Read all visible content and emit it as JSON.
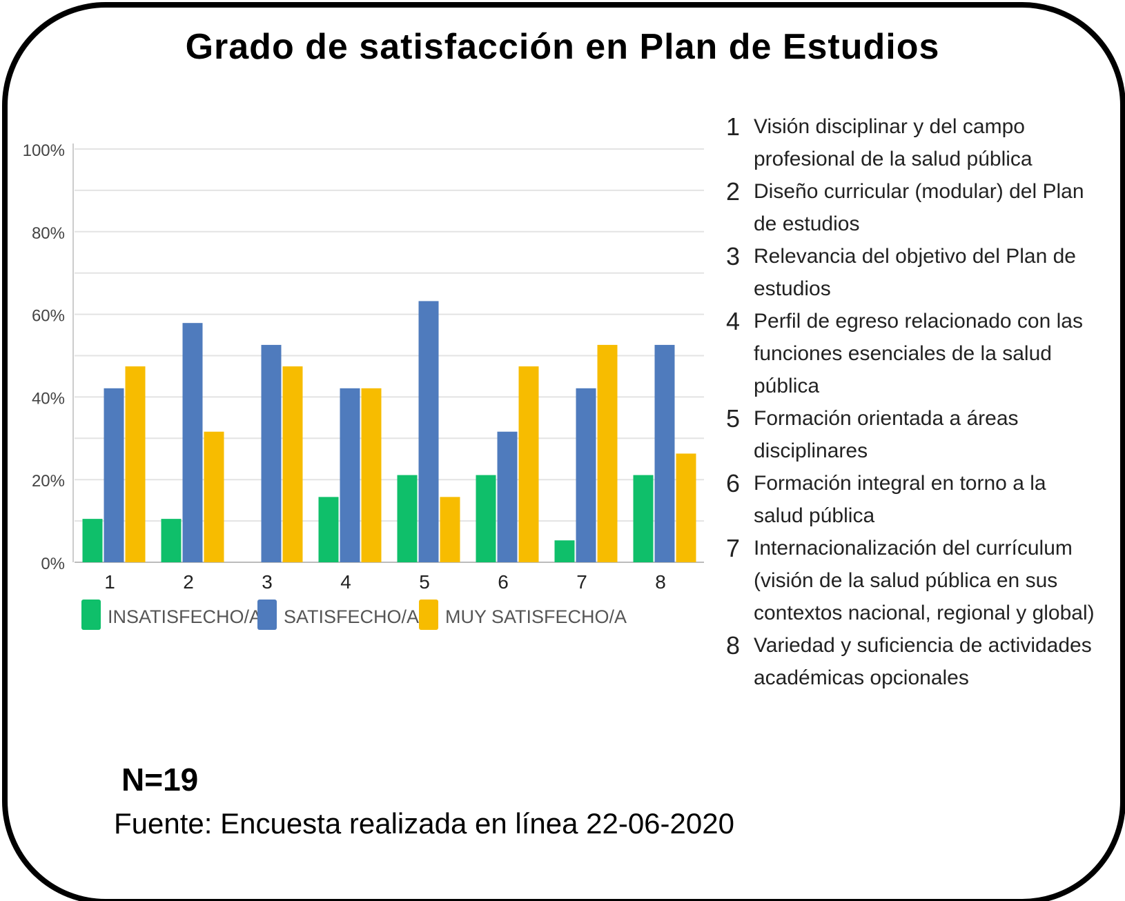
{
  "chart_data": {
    "type": "bar",
    "title": "Grado de satisfacción en Plan de Estudios",
    "categories": [
      "1",
      "2",
      "3",
      "4",
      "5",
      "6",
      "7",
      "8"
    ],
    "series": [
      {
        "name": "INSATISFECHO/A",
        "color": "#0fbf6a",
        "values": [
          10.5,
          10.5,
          0,
          15.8,
          21.1,
          21.1,
          5.3,
          21.1
        ]
      },
      {
        "name": "SATISFECHO/A",
        "color": "#4f7bbd",
        "values": [
          42.1,
          57.9,
          52.6,
          42.1,
          63.2,
          31.6,
          42.1,
          52.6
        ]
      },
      {
        "name": "MUY SATISFECHO/A",
        "color": "#f7bc00",
        "values": [
          47.4,
          31.6,
          47.4,
          42.1,
          15.8,
          47.4,
          52.6,
          26.3
        ]
      }
    ],
    "ylim": [
      0,
      100
    ],
    "yticks": [
      "0%",
      "20%",
      "40%",
      "60%",
      "80%",
      "100%"
    ],
    "grid": true,
    "legend": "bottom",
    "xlabel": "",
    "ylabel": ""
  },
  "items": [
    {
      "num": "1",
      "text": "Visión disciplinar y del campo profesional de la salud pública"
    },
    {
      "num": "2",
      "text": "Diseño curricular (modular) del Plan de estudios"
    },
    {
      "num": "3",
      "text": "Relevancia del objetivo del Plan de estudios"
    },
    {
      "num": "4",
      "text": "Perfil de egreso relacionado con las funciones esenciales de la salud pública"
    },
    {
      "num": "5",
      "text": "Formación orientada a áreas disciplinares"
    },
    {
      "num": "6",
      "text": "Formación integral en torno a la salud pública"
    },
    {
      "num": "7",
      "text": "Internacionalización del currículum (visión de la salud pública en sus contextos nacional, regional y global)"
    },
    {
      "num": "8",
      "text": "Variedad y suficiencia de actividades académicas opcionales"
    }
  ],
  "n_label": "N=19",
  "source": "Fuente: Encuesta realizada en línea 22-06-2020"
}
